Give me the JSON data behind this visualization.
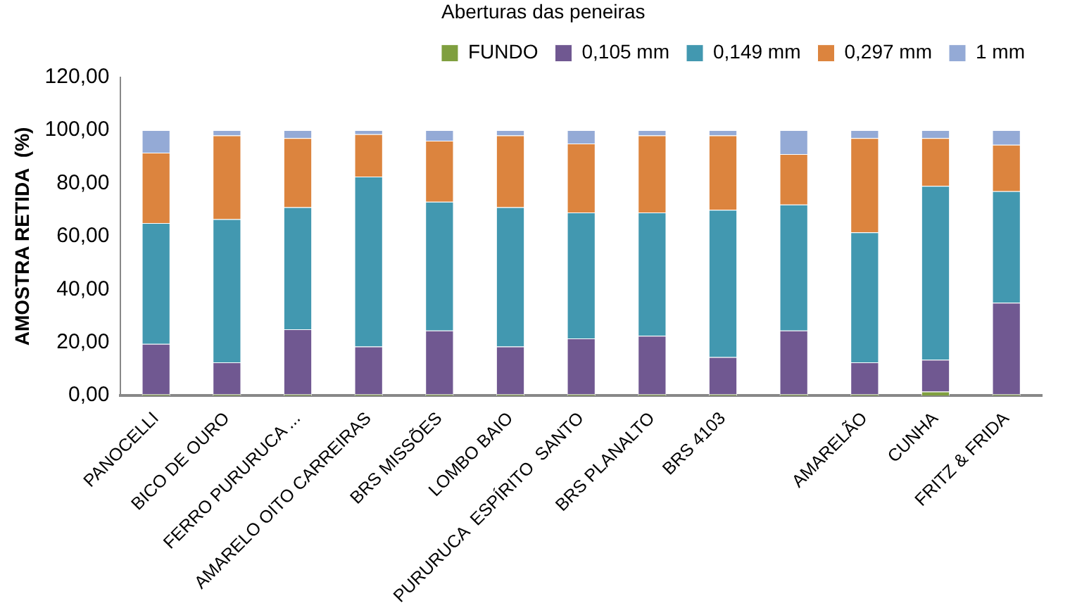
{
  "chart_data": {
    "type": "bar",
    "stacked": true,
    "legend": "top",
    "legend_title": "Aberturas das peneiras",
    "ylabel": "AMOSTRA RETIDA  (%)",
    "categories": [
      "PANOCELLI",
      "BICO DE OURO",
      "FERRO PURURUCA ...",
      "AMARELO OITO CARREIRAS",
      "BRS MISSÕES",
      "LOMBO BAIO",
      "PURURUCA  ESPÍRITO  SANTO",
      "BRS PLANALTO",
      "BRS 4103",
      null,
      "AMARELÃO",
      "CUNHA",
      "FRITZ & FRIDA"
    ],
    "ylim": [
      0,
      120
    ],
    "yticks": [
      {
        "value": 0,
        "label": "0,00"
      },
      {
        "value": 20,
        "label": "20,00"
      },
      {
        "value": 40,
        "label": "40,00"
      },
      {
        "value": 60,
        "label": "60,00"
      },
      {
        "value": 80,
        "label": "80,00"
      },
      {
        "value": 100,
        "label": "100,00"
      },
      {
        "value": 120,
        "label": "120,00"
      }
    ],
    "series": [
      {
        "name": "FUNDO",
        "color": "#7f9f3f",
        "values": [
          0.5,
          0.5,
          0.5,
          0.5,
          0.5,
          0.5,
          0.5,
          0.5,
          0.5,
          0.5,
          0.5,
          1.5,
          0.5
        ]
      },
      {
        "name": "0,105 mm",
        "color": "#705891",
        "values": [
          19,
          12,
          24.5,
          18,
          24,
          18,
          21,
          22,
          14,
          24,
          12,
          12,
          34.5
        ]
      },
      {
        "name": "0,149 mm",
        "color": "#4298b0",
        "values": [
          45.5,
          54,
          46,
          64,
          48.5,
          52.5,
          47.5,
          46.5,
          55.5,
          47.5,
          49,
          65.5,
          42
        ]
      },
      {
        "name": "0,297 mm",
        "color": "#dc843e",
        "values": [
          26.5,
          31.5,
          26,
          16,
          23,
          27,
          26,
          29,
          28,
          19,
          35.5,
          18,
          17.5
        ]
      },
      {
        "name": "1 mm",
        "color": "#94aad6",
        "values": [
          8.5,
          2,
          3,
          1.5,
          4,
          2,
          5,
          2,
          2,
          9,
          3,
          3,
          5.5
        ]
      }
    ]
  }
}
